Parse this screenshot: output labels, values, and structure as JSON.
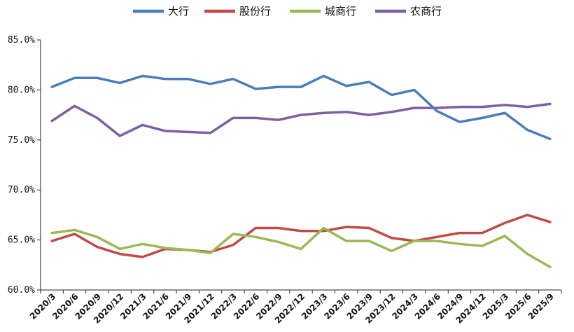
{
  "chart_data": {
    "type": "line",
    "title": "",
    "xlabel": "",
    "ylabel": "",
    "ylim": [
      60,
      85
    ],
    "y_ticks": [
      60,
      65,
      70,
      75,
      80,
      85
    ],
    "y_tick_labels": [
      "60.0%",
      "65.0%",
      "70.0%",
      "75.0%",
      "80.0%",
      "85.0%"
    ],
    "grid": false,
    "legend_position": "top-center",
    "categories": [
      "2020/3",
      "2020/6",
      "2020/9",
      "2020/12",
      "2021/3",
      "2021/6",
      "2021/9",
      "2021/12",
      "2022/3",
      "2022/6",
      "2022/9",
      "2022/12",
      "2023/3",
      "2023/6",
      "2023/9",
      "2023/12",
      "2024/3",
      "2024/6",
      "2024/9",
      "2024/12",
      "2025/3",
      "2025/6",
      "2025/9"
    ],
    "series": [
      {
        "name": "大行",
        "color": "#4A7EBB",
        "values": [
          80.3,
          81.2,
          81.2,
          80.7,
          81.4,
          81.1,
          81.1,
          80.6,
          81.1,
          80.1,
          80.3,
          80.3,
          81.4,
          80.4,
          80.8,
          79.5,
          80.0,
          77.9,
          76.8,
          77.2,
          77.7,
          76.0,
          75.1
        ]
      },
      {
        "name": "股份行",
        "color": "#BE4B48",
        "values": [
          64.9,
          65.6,
          64.3,
          63.6,
          63.3,
          64.1,
          64.0,
          63.8,
          64.5,
          66.2,
          66.2,
          65.9,
          65.9,
          66.3,
          66.2,
          65.2,
          64.9,
          65.3,
          65.7,
          65.7,
          66.7,
          67.5,
          66.8
        ]
      },
      {
        "name": "城商行",
        "color": "#98B954",
        "values": [
          65.7,
          66.0,
          65.3,
          64.1,
          64.6,
          64.2,
          64.0,
          63.7,
          65.6,
          65.3,
          64.8,
          64.1,
          66.2,
          64.9,
          64.9,
          63.9,
          64.9,
          64.9,
          64.6,
          64.4,
          65.4,
          63.6,
          62.3
        ]
      },
      {
        "name": "农商行",
        "color": "#7D60A0",
        "values": [
          76.9,
          78.4,
          77.2,
          75.4,
          76.5,
          75.9,
          75.8,
          75.7,
          77.2,
          77.2,
          77.0,
          77.5,
          77.7,
          77.8,
          77.5,
          77.8,
          78.2,
          78.2,
          78.3,
          78.3,
          78.5,
          78.3,
          78.6
        ]
      }
    ]
  }
}
